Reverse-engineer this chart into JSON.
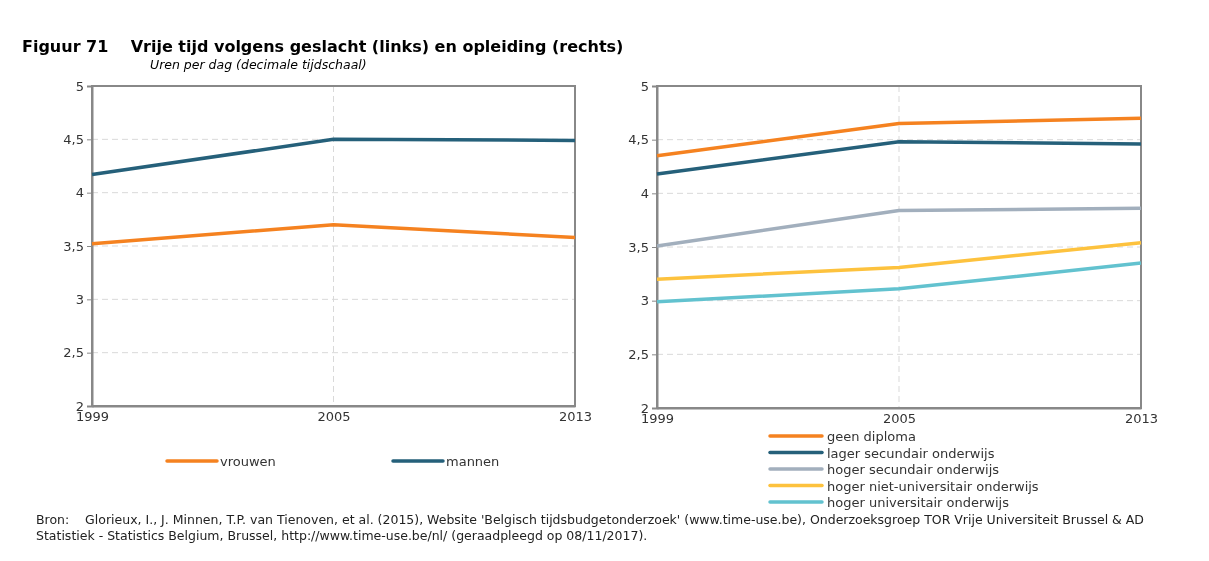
{
  "chart_data": [
    {
      "type": "line",
      "title": "Figuur 71    Vrije tijd volgens geslacht (links) en opleiding (rechts)",
      "subtitle": "Uren per dag (decimale tijdschaal)",
      "categories": [
        "1999",
        "2005",
        "2013"
      ],
      "ylim": [
        2,
        5
      ],
      "yticks": [
        2,
        {
          "value": 2.5,
          "label": "2,5"
        },
        3,
        {
          "value": 3.5,
          "label": "3,5"
        },
        4,
        {
          "value": 4.5,
          "label": "4,5"
        },
        5
      ],
      "grid": true,
      "legend": "bottom",
      "line_style": "solid",
      "series": [
        {
          "name": "vrouwen",
          "color": "#f58220",
          "values": [
            3.52,
            3.7,
            3.58
          ]
        },
        {
          "name": "mannen",
          "color": "#25607a",
          "values": [
            4.17,
            4.5,
            4.49
          ]
        }
      ]
    },
    {
      "type": "line",
      "categories": [
        "1999",
        "2005",
        "2013"
      ],
      "ylim": [
        2,
        5
      ],
      "yticks": [
        2,
        {
          "value": 2.5,
          "label": "2,5"
        },
        3,
        {
          "value": 3.5,
          "label": "3,5"
        },
        4,
        {
          "value": 4.5,
          "label": "4,5"
        },
        5
      ],
      "grid": true,
      "legend": "bottom",
      "line_style": "solid",
      "annotations": [
        "Bron:    Glorieux, I., J. Minnen, T.P. van Tienoven, et al. (2015), Website 'Belgisch tijdsbudgetonderzoek' (www.time-use.be), Onderzoeksgroep TOR Vrije Universiteit Brussel & AD Statistiek - Statistics Belgium, Brussel, http://www.time-use.be/nl/ (geraadpleegd op 08/11/2017)."
      ],
      "series": [
        {
          "name": "geen diploma",
          "color": "#f58220",
          "values": [
            4.35,
            4.65,
            4.7
          ]
        },
        {
          "name": "lager secundair onderwijs",
          "color": "#25607a",
          "values": [
            4.18,
            4.48,
            4.46
          ]
        },
        {
          "name": "hoger secundair onderwijs",
          "color": "#a2afbd",
          "values": [
            3.51,
            3.84,
            3.86
          ]
        },
        {
          "name": "hoger niet-universitair onderwijs",
          "color": "#fdc23e",
          "values": [
            3.2,
            3.31,
            3.54
          ]
        },
        {
          "name": "hoger universitair onderwijs",
          "color": "#62c2cf",
          "values": [
            2.99,
            3.11,
            3.35
          ]
        }
      ]
    }
  ]
}
